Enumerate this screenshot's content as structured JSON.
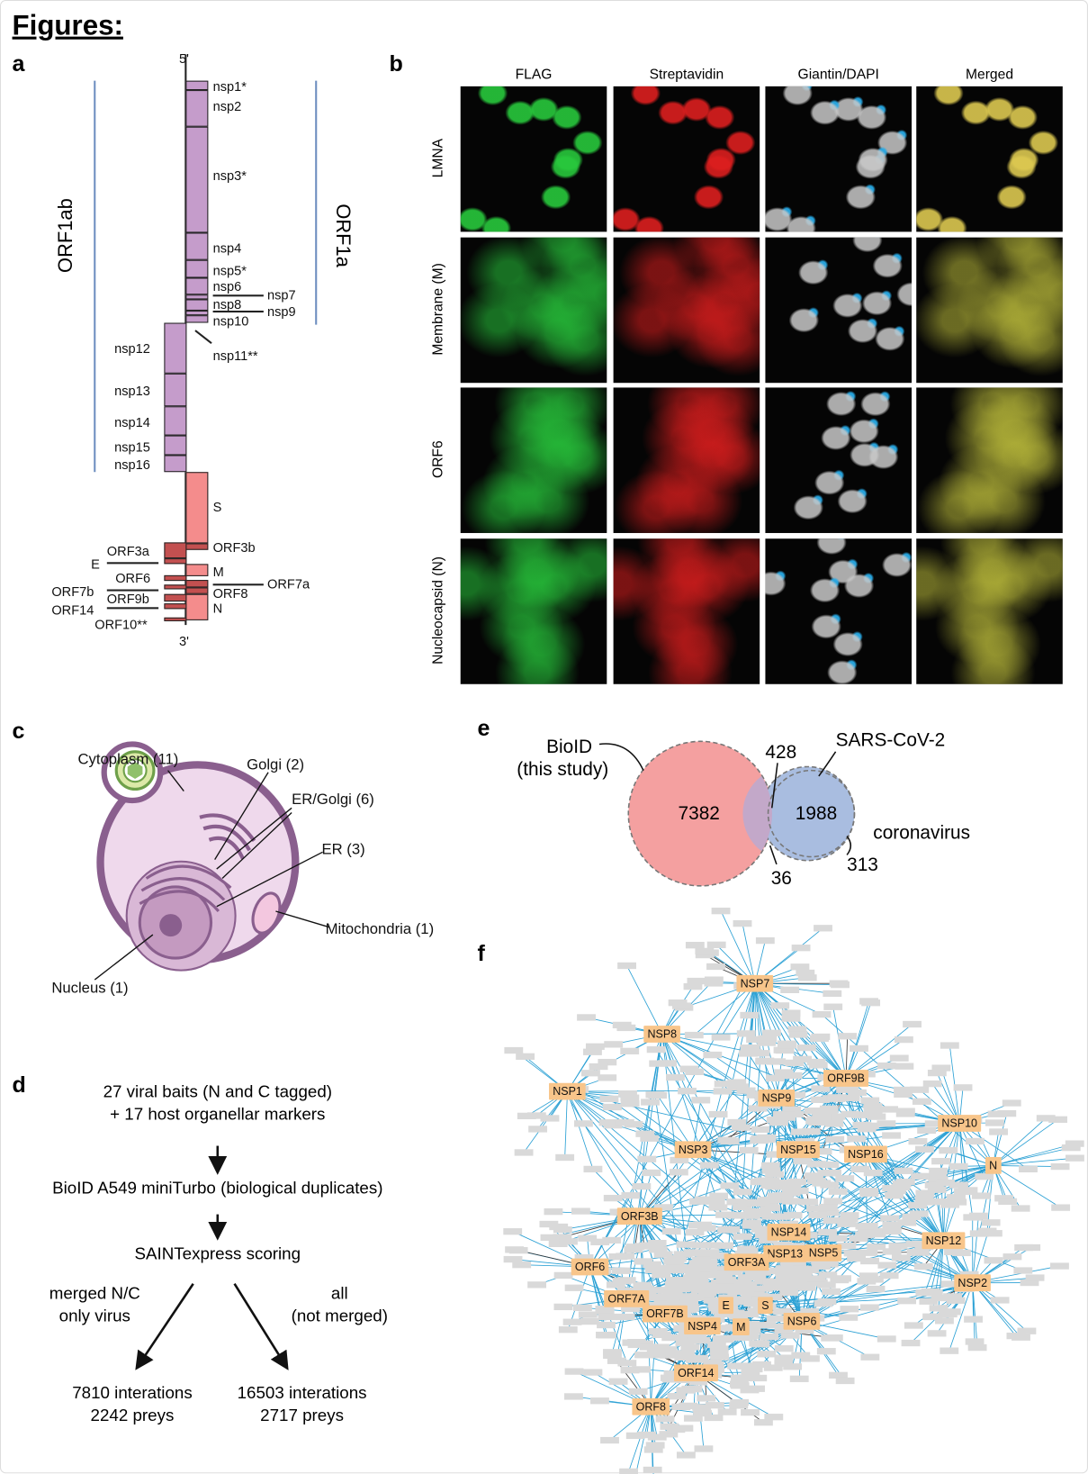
{
  "title": "Figures:",
  "panels": {
    "a": "a",
    "b": "b",
    "c": "c",
    "d": "d",
    "e": "e",
    "f": "f"
  },
  "panel_a": {
    "five_prime": "5'",
    "three_prime": "3'",
    "orf1ab": "ORF1ab",
    "orf1a": "ORF1a",
    "right_labels": [
      "nsp1*",
      "nsp2",
      "nsp3*",
      "nsp4",
      "nsp5*",
      "nsp6",
      "nsp8",
      "nsp10",
      "nsp11**",
      "S",
      "ORF3b",
      "M",
      "ORF8",
      "N"
    ],
    "far_right_labels": [
      "nsp7",
      "nsp9",
      "ORF7a"
    ],
    "left_labels": [
      "nsp12",
      "nsp13",
      "nsp14",
      "nsp15",
      "nsp16",
      "ORF3a",
      "E",
      "ORF6",
      "ORF7b",
      "ORF9b",
      "ORF14",
      "ORF10**"
    ],
    "colors": {
      "nsp": "#c59ccb",
      "structural": "#f48c8c",
      "accessory": "#c35050",
      "orf_bars": "#6f8fc0"
    }
  },
  "panel_b": {
    "columns": [
      "FLAG",
      "Streptavidin",
      "Giantin/DAPI",
      "Merged"
    ],
    "rows": [
      "LMNA",
      "Membrane (M)",
      "ORF6",
      "Nucleocapsid (N)"
    ]
  },
  "panel_c": {
    "labels": [
      "Cytoplasm (11)",
      "Golgi (2)",
      "ER/Golgi (6)",
      "ER (3)",
      "Mitochondria (1)",
      "Nucleus (1)"
    ]
  },
  "panel_d": {
    "step1_line1": "27 viral baits (N and C tagged)",
    "step1_line2": "+ 17 host organellar markers",
    "step2": "BioID A549 miniTurbo (biological duplicates)",
    "step3": "SAINTexpress scoring",
    "left_branch_line1": "merged N/C",
    "left_branch_line2": "only virus",
    "right_branch_line1": "all",
    "right_branch_line2": "(not merged)",
    "left_result_line1": "7810 interations",
    "left_result_line2": "2242 preys",
    "right_result_line1": "16503 interations",
    "right_result_line2": "2717 preys"
  },
  "panel_e": {
    "bioid_line1": "BioID",
    "bioid_line2": "(this study)",
    "sars_label": "SARS-CoV-2",
    "corona_label": "coronavirus",
    "bioid_only": "7382",
    "overlap_sars": "428",
    "sars_only": "1988",
    "overlap_corona": "36",
    "corona_only": "313",
    "colors": {
      "bioid": "#f4a0a0",
      "sars": "#a9bde0"
    }
  },
  "panel_f": {
    "hubs": [
      "NSP7",
      "NSP8",
      "NSP1",
      "NSP9",
      "ORF9B",
      "NSP10",
      "NSP3",
      "NSP15",
      "NSP16",
      "N",
      "ORF3B",
      "NSP14",
      "NSP13",
      "NSP5",
      "NSP12",
      "ORF3A",
      "ORF6",
      "NSP2",
      "ORF7A",
      "ORF7B",
      "E",
      "S",
      "NSP4",
      "M",
      "NSP6",
      "ORF14",
      "ORF8"
    ],
    "colors": {
      "hub": "#f8c58a",
      "prey": "#d9d9d9",
      "edge": "#2aa0d4"
    }
  }
}
